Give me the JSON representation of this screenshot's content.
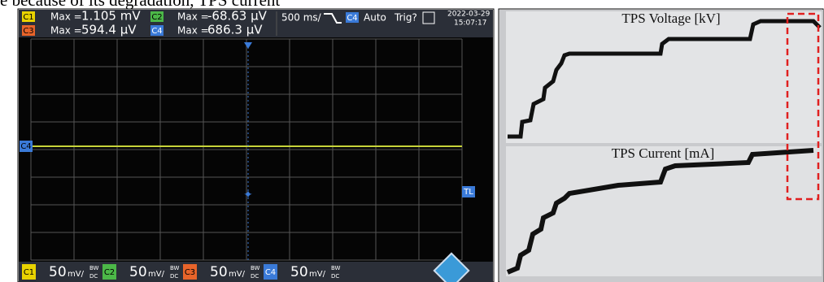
{
  "caption_fragment": "e because of its degradation, TPS current",
  "oscilloscope": {
    "measurements": [
      {
        "channel": "C1",
        "label": "Max =",
        "value": "1.105 mV"
      },
      {
        "channel": "C2",
        "label": "Max =",
        "value": "-68.63 µV"
      },
      {
        "channel": "C3",
        "label": "Max =",
        "value": "594.4 µV"
      },
      {
        "channel": "C4",
        "label": "Max =",
        "value": "686.3 µV"
      }
    ],
    "timebase": "500 ms/",
    "trigger_channel": "C4",
    "trigger_mode": "Auto",
    "trigger_status": "Trig?",
    "date": "2022-03-29",
    "time": "15:07:17",
    "channels": [
      {
        "channel": "C1",
        "scale": "50",
        "unit": "mV/",
        "bw": "BW",
        "coupling": "DC"
      },
      {
        "channel": "C2",
        "scale": "50",
        "unit": "mV/",
        "bw": "BW",
        "coupling": "DC"
      },
      {
        "channel": "C3",
        "scale": "50",
        "unit": "mV/",
        "bw": "BW",
        "coupling": "DC"
      },
      {
        "channel": "C4",
        "scale": "50",
        "unit": "mV/",
        "bw": "BW",
        "coupling": "DC"
      }
    ],
    "left_marker": "C4",
    "right_marker": "TL"
  },
  "plot_photo": {
    "top_label": "TPS Voltage [kV]",
    "bottom_label": "TPS Current [mA]"
  }
}
